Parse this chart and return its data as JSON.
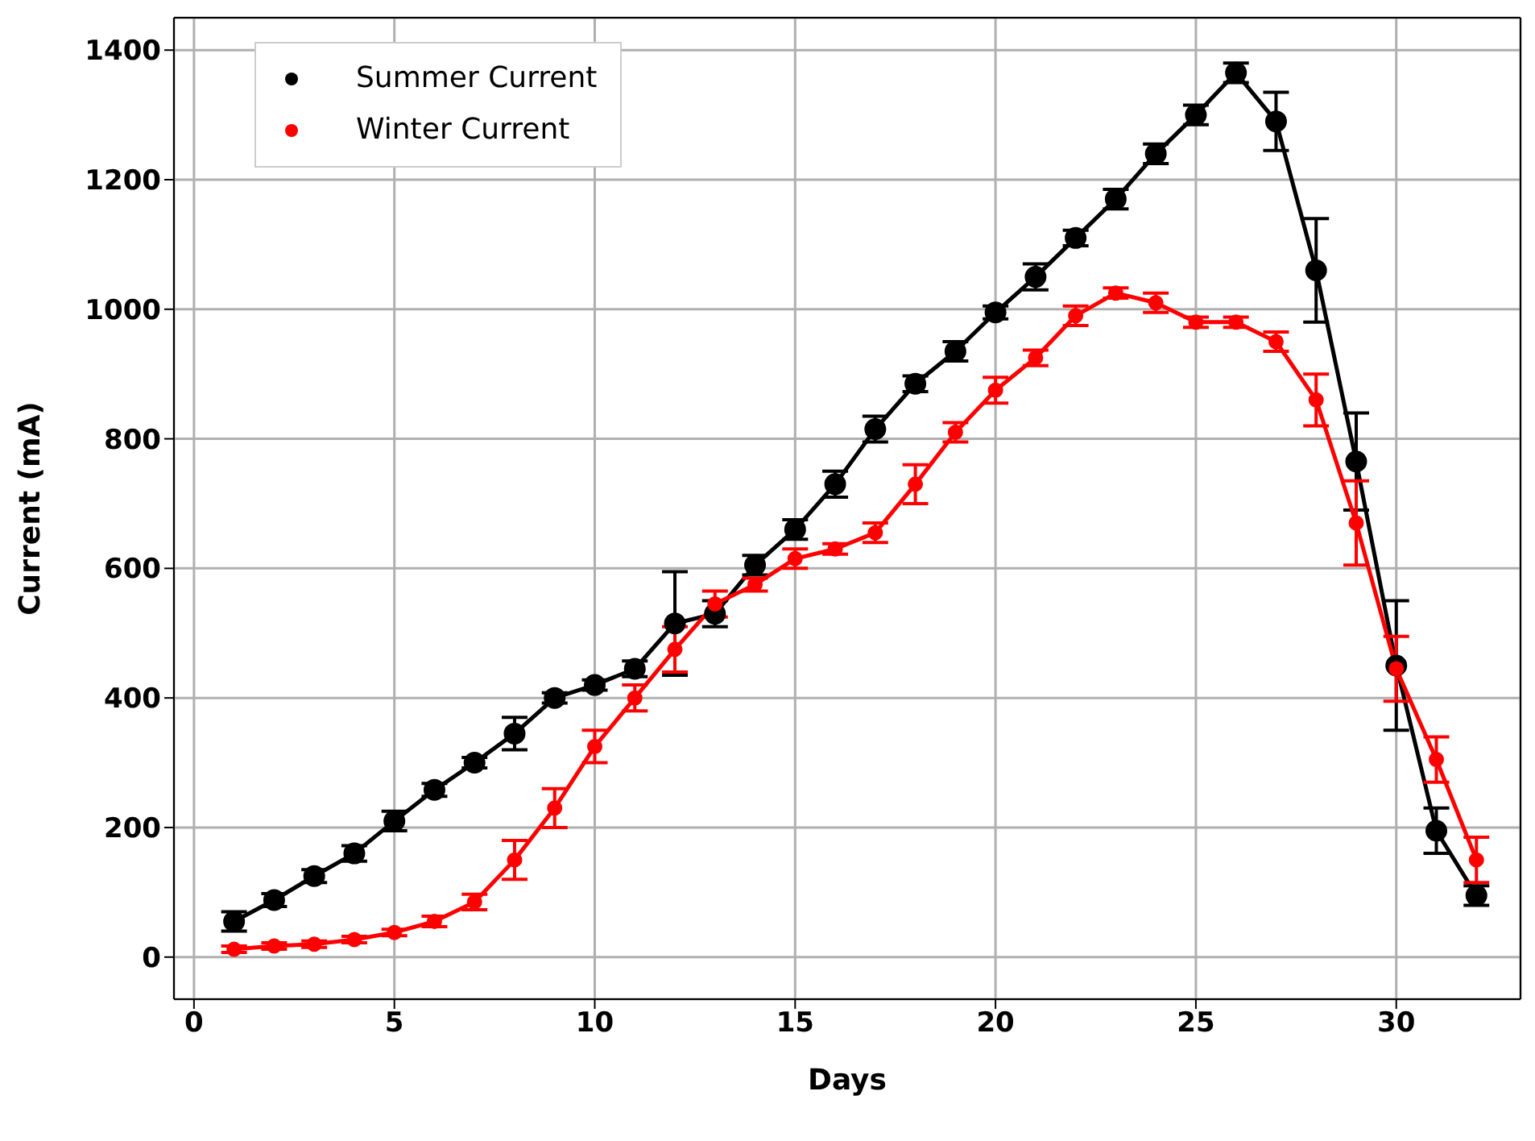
{
  "chart_data": {
    "type": "line",
    "xlabel": "Days",
    "ylabel": "Current (mA)",
    "x": [
      1,
      2,
      3,
      4,
      5,
      6,
      7,
      8,
      9,
      10,
      11,
      12,
      13,
      14,
      15,
      16,
      17,
      18,
      19,
      20,
      21,
      22,
      23,
      24,
      25,
      26,
      27,
      28,
      29,
      30,
      31,
      32
    ],
    "series": [
      {
        "name": "Summer Current",
        "color": "#000000",
        "values": [
          55,
          88,
          125,
          160,
          210,
          258,
          300,
          345,
          400,
          420,
          445,
          515,
          530,
          605,
          660,
          730,
          815,
          885,
          935,
          995,
          1050,
          1110,
          1170,
          1240,
          1300,
          1365,
          1290,
          1060,
          765,
          450,
          195,
          95
        ],
        "errors": [
          15,
          10,
          10,
          12,
          15,
          10,
          8,
          25,
          8,
          8,
          12,
          80,
          20,
          15,
          15,
          20,
          20,
          12,
          15,
          10,
          20,
          12,
          15,
          15,
          15,
          15,
          45,
          80,
          75,
          100,
          35,
          15
        ]
      },
      {
        "name": "Winter Current",
        "color": "#ff0000",
        "values": [
          12,
          17,
          20,
          27,
          38,
          55,
          85,
          150,
          230,
          325,
          400,
          475,
          545,
          575,
          615,
          630,
          655,
          730,
          810,
          875,
          925,
          990,
          1025,
          1010,
          980,
          980,
          950,
          860,
          670,
          445,
          305,
          150
        ],
        "errors": [
          5,
          5,
          5,
          5,
          5,
          8,
          12,
          30,
          30,
          25,
          20,
          35,
          20,
          10,
          15,
          8,
          15,
          30,
          15,
          20,
          12,
          15,
          8,
          15,
          8,
          8,
          15,
          40,
          65,
          50,
          35,
          35
        ]
      }
    ],
    "xlim": [
      -0.5,
      33.1
    ],
    "xticks": [
      0,
      5,
      10,
      15,
      20,
      25,
      30
    ],
    "ylim": [
      -65,
      1450
    ],
    "yticks": [
      0,
      200,
      400,
      600,
      800,
      1000,
      1200,
      1400
    ],
    "grid": true,
    "legend": "top left",
    "marker": "circle",
    "line_style": "solid"
  }
}
